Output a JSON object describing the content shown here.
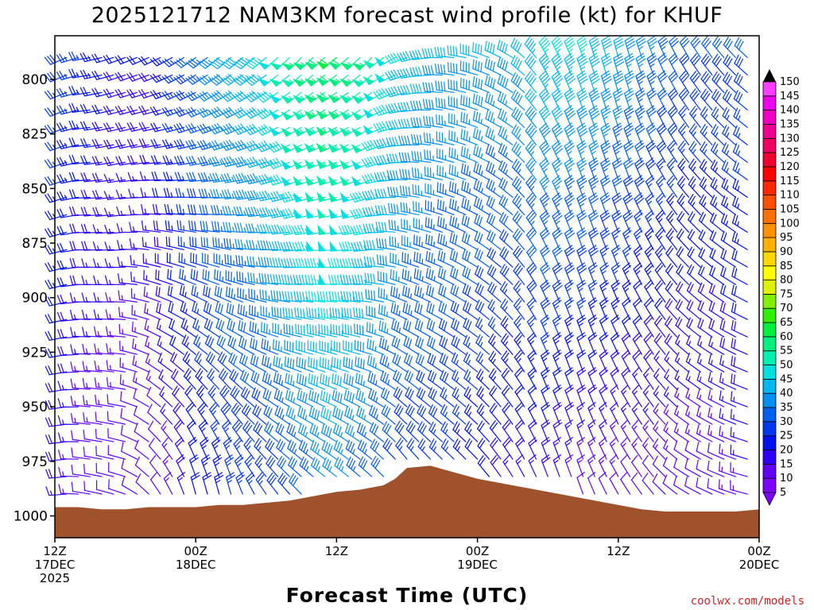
{
  "chart_data": {
    "type": "wind_barb_profile",
    "title": "2025121712 NAM3KM forecast wind profile (kt) for KHUF",
    "xlabel": "Forecast Time (UTC)",
    "credit": "coolwx.com/models",
    "units": "kt",
    "y_axis": {
      "label": "",
      "range": [
        1010,
        780
      ],
      "ticks": [
        800,
        825,
        850,
        875,
        900,
        925,
        950,
        975,
        1000
      ]
    },
    "x_axis": {
      "range_hours": [
        0,
        60
      ],
      "ticks": [
        {
          "hour": 0,
          "lines": [
            "12Z",
            "17DEC",
            "2025"
          ]
        },
        {
          "hour": 12,
          "lines": [
            "00Z",
            "18DEC"
          ]
        },
        {
          "hour": 24,
          "lines": [
            "12Z"
          ]
        },
        {
          "hour": 36,
          "lines": [
            "00Z",
            "19DEC"
          ]
        },
        {
          "hour": 48,
          "lines": [
            "12Z"
          ]
        },
        {
          "hour": 60,
          "lines": [
            "00Z",
            "20DEC"
          ]
        }
      ]
    },
    "colorbar": {
      "levels": [
        5,
        10,
        15,
        20,
        25,
        30,
        35,
        40,
        45,
        50,
        55,
        60,
        65,
        70,
        75,
        80,
        85,
        90,
        95,
        100,
        105,
        110,
        115,
        120,
        125,
        130,
        135,
        140,
        145,
        150
      ],
      "colors": [
        "#8000ff",
        "#6000ff",
        "#3000ff",
        "#0010f0",
        "#0038f0",
        "#0060f0",
        "#0090f0",
        "#00b8f0",
        "#00e0e0",
        "#00f0b0",
        "#00f080",
        "#00f040",
        "#30f000",
        "#80f000",
        "#e0f000",
        "#ffff00",
        "#ffd800",
        "#ffb000",
        "#ff9000",
        "#ff7000",
        "#ff5000",
        "#ff2800",
        "#ff0000",
        "#f00030",
        "#f00060",
        "#f00090",
        "#f000c0",
        "#f000f0",
        "#ff40ff",
        "#ff80ff"
      ]
    },
    "terrain": {
      "color": "#a0522d",
      "hours": [
        0,
        2,
        4,
        6,
        8,
        10,
        12,
        14,
        16,
        18,
        20,
        22,
        24,
        26,
        28,
        29,
        30,
        32,
        34,
        36,
        38,
        40,
        42,
        44,
        46,
        48,
        50,
        52,
        54,
        56,
        58,
        60
      ],
      "pressure": [
        996,
        996,
        997,
        997,
        996,
        996,
        996,
        995,
        995,
        994,
        993,
        991,
        989,
        988,
        986,
        983,
        978,
        977,
        980,
        983,
        985,
        987,
        989,
        991,
        993,
        995,
        997,
        998,
        998,
        998,
        998,
        997
      ]
    },
    "series": [
      {
        "name": "h0",
        "hour": 0,
        "levels": [
          790,
          1000
        ],
        "dir": [
          240,
          260
        ],
        "spd": [
          30,
          20
        ]
      },
      {
        "name": "h3",
        "hour": 3,
        "levels": [
          790,
          1000
        ],
        "dir": [
          260,
          280
        ],
        "spd": [
          25,
          10
        ]
      },
      {
        "name": "h6",
        "hour": 6,
        "levels": [
          790,
          1000
        ],
        "dir": [
          250,
          290
        ],
        "spd": [
          20,
          10
        ]
      },
      {
        "name": "h9",
        "hour": 9,
        "levels": [
          790,
          1000
        ],
        "dir": [
          245,
          330
        ],
        "spd": [
          20,
          10
        ]
      },
      {
        "name": "h12",
        "hour": 12,
        "levels": [
          790,
          1000
        ],
        "dir": [
          235,
          350
        ],
        "spd": [
          30,
          20
        ]
      },
      {
        "name": "h15",
        "hour": 15,
        "levels": [
          790,
          1000
        ],
        "dir": [
          230,
          350
        ],
        "spd": [
          40,
          25
        ]
      },
      {
        "name": "h18",
        "hour": 18,
        "levels": [
          790,
          1000
        ],
        "dir": [
          230,
          330
        ],
        "spd": [
          45,
          25
        ]
      },
      {
        "name": "h21",
        "hour": 21,
        "levels": [
          790,
          1000
        ],
        "dir": [
          225,
          320
        ],
        "spd": [
          55,
          30
        ]
      },
      {
        "name": "h24",
        "hour": 24,
        "levels": [
          790,
          1000
        ],
        "dir": [
          230,
          315
        ],
        "spd": [
          60,
          35
        ]
      },
      {
        "name": "h27",
        "hour": 27,
        "levels": [
          790,
          1000
        ],
        "dir": [
          225,
          320
        ],
        "spd": [
          55,
          30
        ]
      },
      {
        "name": "h30",
        "hour": 30,
        "levels": [
          790,
          1000
        ],
        "dir": [
          250,
          330
        ],
        "spd": [
          45,
          25
        ]
      },
      {
        "name": "h33",
        "hour": 33,
        "levels": [
          790,
          1000
        ],
        "dir": [
          270,
          320
        ],
        "spd": [
          40,
          25
        ]
      },
      {
        "name": "h36",
        "hour": 36,
        "levels": [
          790,
          1000
        ],
        "dir": [
          285,
          320
        ],
        "spd": [
          40,
          20
        ]
      },
      {
        "name": "h39",
        "hour": 39,
        "levels": [
          790,
          1000
        ],
        "dir": [
          300,
          330
        ],
        "spd": [
          40,
          15
        ]
      },
      {
        "name": "h42",
        "hour": 42,
        "levels": [
          790,
          1000
        ],
        "dir": [
          330,
          340
        ],
        "spd": [
          45,
          15
        ]
      },
      {
        "name": "h45",
        "hour": 45,
        "levels": [
          790,
          1000
        ],
        "dir": [
          340,
          340
        ],
        "spd": [
          45,
          10
        ]
      },
      {
        "name": "h48",
        "hour": 48,
        "levels": [
          790,
          1000
        ],
        "dir": [
          345,
          330
        ],
        "spd": [
          40,
          10
        ]
      },
      {
        "name": "h51",
        "hour": 51,
        "levels": [
          790,
          1000
        ],
        "dir": [
          340,
          320
        ],
        "spd": [
          35,
          10
        ]
      },
      {
        "name": "h54",
        "hour": 54,
        "levels": [
          790,
          1000
        ],
        "dir": [
          330,
          300
        ],
        "spd": [
          30,
          10
        ]
      },
      {
        "name": "h57",
        "hour": 57,
        "levels": [
          790,
          1000
        ],
        "dir": [
          320,
          290
        ],
        "spd": [
          30,
          10
        ]
      },
      {
        "name": "h60",
        "hour": 60,
        "levels": [
          790,
          1000
        ],
        "dir": [
          310,
          280
        ],
        "spd": [
          30,
          15
        ]
      }
    ]
  }
}
